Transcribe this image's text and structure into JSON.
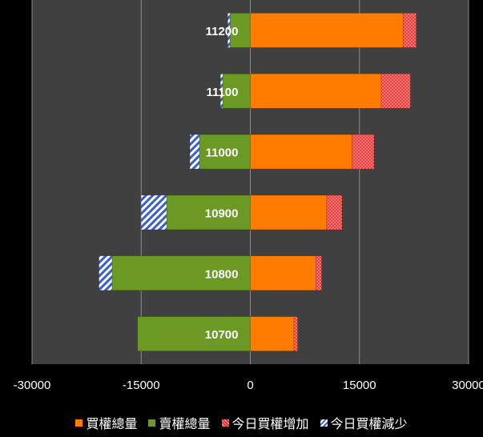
{
  "chart_data": {
    "type": "bar",
    "orientation": "horizontal",
    "stacked": true,
    "categories": [
      "11200",
      "11100",
      "11000",
      "10900",
      "10800",
      "10700"
    ],
    "series": [
      {
        "name": "買權總量",
        "color": "#ff7c00",
        "pattern": "solid",
        "values": [
          21000,
          18000,
          14000,
          10500,
          9000,
          6000
        ]
      },
      {
        "name": "賣權總量",
        "color": "#6b9a24",
        "pattern": "solid",
        "values": [
          -2800,
          -3800,
          -7000,
          -11500,
          -19000,
          -15500
        ]
      },
      {
        "name": "今日買權增加",
        "color": "#ee2a2a",
        "pattern": "crosshatch",
        "values": [
          1800,
          4000,
          3000,
          2100,
          800,
          500
        ]
      },
      {
        "name": "今日買權減少",
        "color": "#3a5fd0",
        "pattern": "diagonal-stripes",
        "values": [
          -300,
          -300,
          -1300,
          -3500,
          -1800,
          0
        ]
      }
    ],
    "xlim": [
      -30000,
      30000
    ],
    "xticks": [
      "-30000",
      "-15000",
      "0",
      "15000",
      "30000"
    ],
    "grid": true,
    "legend_position": "bottom",
    "category_labels_position": "inside-center",
    "plot_background": "#404040"
  }
}
